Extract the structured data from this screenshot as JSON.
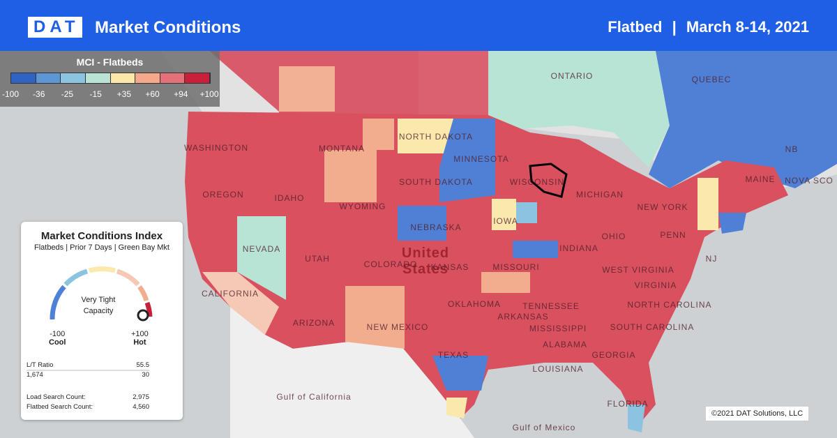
{
  "header": {
    "logo": "DAT",
    "title": "Market Conditions",
    "equipment": "Flatbed",
    "date": "March 8-14, 2021"
  },
  "legend": {
    "title": "MCI - Flatbeds",
    "labels": [
      "-100",
      "-36",
      "-25",
      "-15",
      "+35",
      "+60",
      "+94",
      "+100"
    ],
    "colors": [
      "#2f63c4",
      "#5c96d3",
      "#8cc3e0",
      "#b9e3d3",
      "#fbe7a8",
      "#f3a98a",
      "#e4707a",
      "#c81f3d"
    ]
  },
  "card": {
    "title": "Market Conditions Index",
    "subtitle": "Flatbeds | Prior 7 Days | Green Bay Mkt",
    "gauge_label": "Very Tight Capacity",
    "min_label": "-100",
    "min_text": "Cool",
    "max_label": "+100",
    "max_text": "Hot",
    "stats": [
      {
        "label": "L/T Ratio",
        "value": "55.5"
      },
      {
        "label": "1,674",
        "value": "30"
      },
      {
        "label": "Load Search Count:",
        "value": "2,975"
      },
      {
        "label": "Flatbed Search Count:",
        "value": "4,560"
      }
    ]
  },
  "map": {
    "labels": [
      "ONTARIO",
      "QUEBEC",
      "WASHINGTON",
      "MONTANA",
      "NORTH DAKOTA",
      "MINNESOTA",
      "OREGON",
      "IDAHO",
      "SOUTH DAKOTA",
      "WISCONSIN",
      "WYOMING",
      "MICHIGAN",
      "MAINE",
      "NB",
      "NOVA SCO",
      "NEW YORK",
      "IOWA",
      "NEBRASKA",
      "NEVADA",
      "United States",
      "UTAH",
      "COLORADO",
      "KANSAS",
      "MISSOURI",
      "INDIANA",
      "OHIO",
      "PENN",
      "NJ",
      "WEST VIRGINIA",
      "VIRGINIA",
      "CALIFORNIA",
      "OKLAHOMA",
      "TENNESSEE",
      "NORTH CAROLINA",
      "ARIZONA",
      "NEW MEXICO",
      "ARKANSAS",
      "MISSISSIPPI",
      "SOUTH CAROLINA",
      "ALABAMA",
      "TEXAS",
      "LOUISIANA",
      "GEORGIA",
      "FLORIDA",
      "Gulf of California",
      "Gulf of Mexico"
    ],
    "copyright": "©2021 DAT Solutions, LLC"
  }
}
